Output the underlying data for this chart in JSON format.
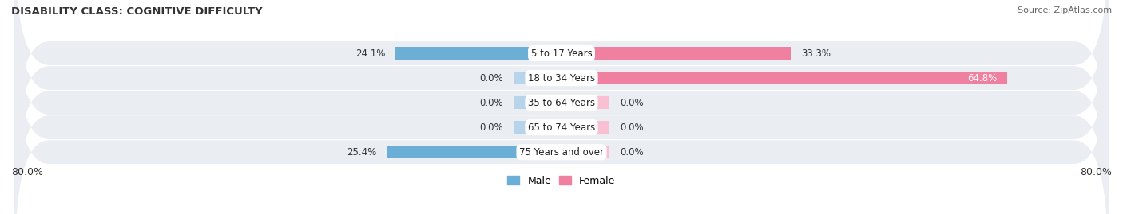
{
  "title": "DISABILITY CLASS: COGNITIVE DIFFICULTY",
  "source": "Source: ZipAtlas.com",
  "categories": [
    "5 to 17 Years",
    "18 to 34 Years",
    "35 to 64 Years",
    "65 to 74 Years",
    "75 Years and over"
  ],
  "male_values": [
    24.1,
    0.0,
    0.0,
    0.0,
    25.4
  ],
  "female_values": [
    33.3,
    64.8,
    0.0,
    0.0,
    0.0
  ],
  "male_color": "#6baed6",
  "female_color": "#f080a0",
  "male_stub_color": "#b8d4ea",
  "female_stub_color": "#f8c0d0",
  "row_bg_color": "#eaedf2",
  "row_alt_color": "#e0e4ec",
  "axis_min": -80.0,
  "axis_max": 80.0,
  "stub_size": 7.0,
  "x_left_label": "80.0%",
  "x_right_label": "80.0%",
  "title_fontsize": 9.5,
  "source_fontsize": 8,
  "label_fontsize": 8.5,
  "value_fontsize": 8.5,
  "tick_fontsize": 9
}
